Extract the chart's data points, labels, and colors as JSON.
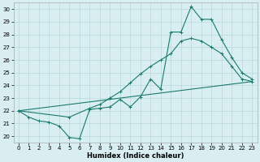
{
  "xlabel": "Humidex (Indice chaleur)",
  "ylabel": "",
  "bg_color": "#d8eef0",
  "grid_color": "#b8d8da",
  "line_color": "#1a7a6e",
  "xlim": [
    -0.5,
    23.5
  ],
  "ylim": [
    19.5,
    30.5
  ],
  "yticks": [
    20,
    21,
    22,
    23,
    24,
    25,
    26,
    27,
    28,
    29,
    30
  ],
  "xticks": [
    0,
    1,
    2,
    3,
    4,
    5,
    6,
    7,
    8,
    9,
    10,
    11,
    12,
    13,
    14,
    15,
    16,
    17,
    18,
    19,
    20,
    21,
    22,
    23
  ],
  "line1_x": [
    0,
    1,
    2,
    3,
    4,
    5,
    6,
    7,
    8,
    9,
    10,
    11,
    12,
    13,
    14,
    15,
    16,
    17,
    18,
    19,
    20,
    21,
    22,
    23
  ],
  "line1_y": [
    22.0,
    21.5,
    21.2,
    21.1,
    20.8,
    19.9,
    19.8,
    22.1,
    22.2,
    22.3,
    22.9,
    22.3,
    23.1,
    24.5,
    23.7,
    28.2,
    28.2,
    30.2,
    29.2,
    29.2,
    27.6,
    26.2,
    25.0,
    24.5
  ],
  "line2_x": [
    0,
    5,
    7,
    8,
    9,
    10,
    11,
    12,
    13,
    14,
    15,
    16,
    17,
    18,
    19,
    20,
    21,
    22,
    23
  ],
  "line2_y": [
    22.0,
    21.5,
    22.2,
    22.5,
    23.0,
    23.5,
    24.2,
    24.9,
    25.5,
    26.0,
    26.5,
    27.5,
    27.7,
    27.5,
    27.0,
    26.5,
    25.5,
    24.5,
    24.3
  ],
  "line3_x": [
    0,
    23
  ],
  "line3_y": [
    22.0,
    24.3
  ]
}
